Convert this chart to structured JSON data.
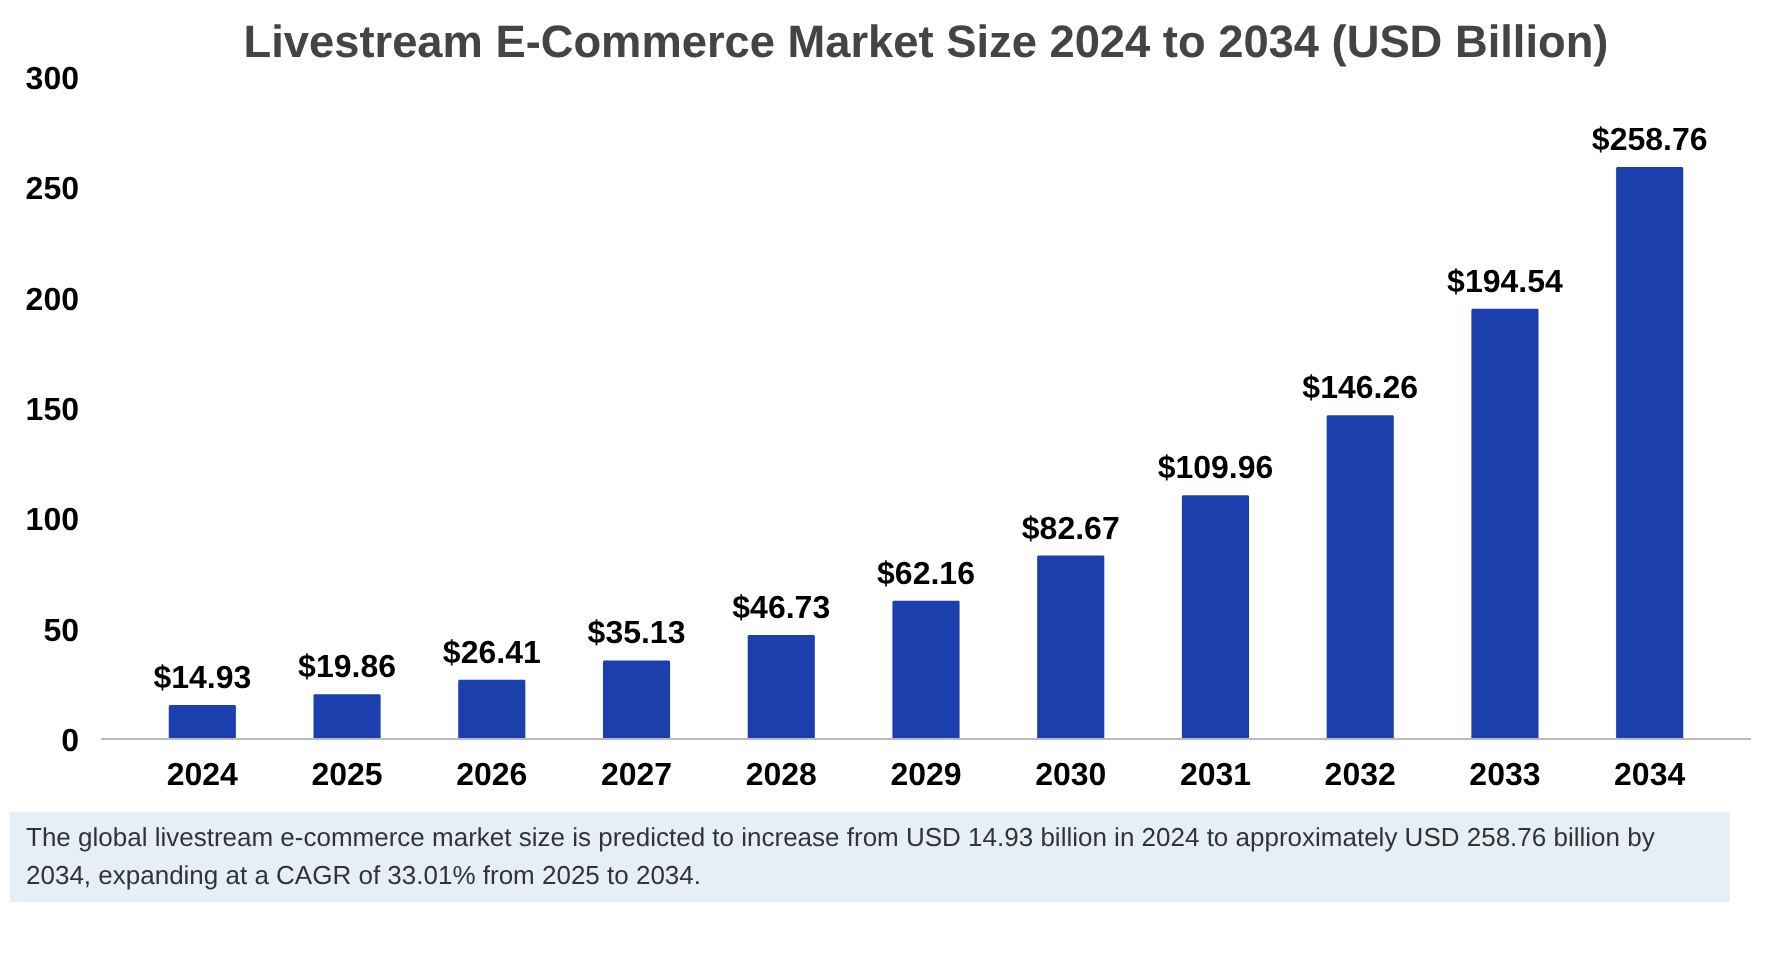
{
  "chart_data": {
    "type": "bar",
    "title": "Livestream E-Commerce Market Size 2024 to 2034 (USD Billion)",
    "categories": [
      "2024",
      "2025",
      "2026",
      "2027",
      "2028",
      "2029",
      "2030",
      "2031",
      "2032",
      "2033",
      "2034"
    ],
    "values": [
      14.93,
      19.86,
      26.41,
      35.13,
      46.73,
      62.16,
      82.67,
      109.96,
      146.26,
      194.54,
      258.76
    ],
    "value_labels": [
      "$14.93",
      "$19.86",
      "$26.41",
      "$35.13",
      "$46.73",
      "$62.16",
      "$82.67",
      "$109.96",
      "$146.26",
      "$194.54",
      "$258.76"
    ],
    "color": "#1c3fae",
    "ylim": [
      0,
      300
    ],
    "yticks": [
      0,
      50,
      100,
      150,
      200,
      250,
      300
    ],
    "grid": false,
    "annotations": [
      "The global livestream e-commerce market size is predicted to increase from USD 14.93 billion in 2024 to approximately USD 258.76 billion by 2034, expanding at a CAGR of 33.01% from 2025 to 2034."
    ]
  }
}
